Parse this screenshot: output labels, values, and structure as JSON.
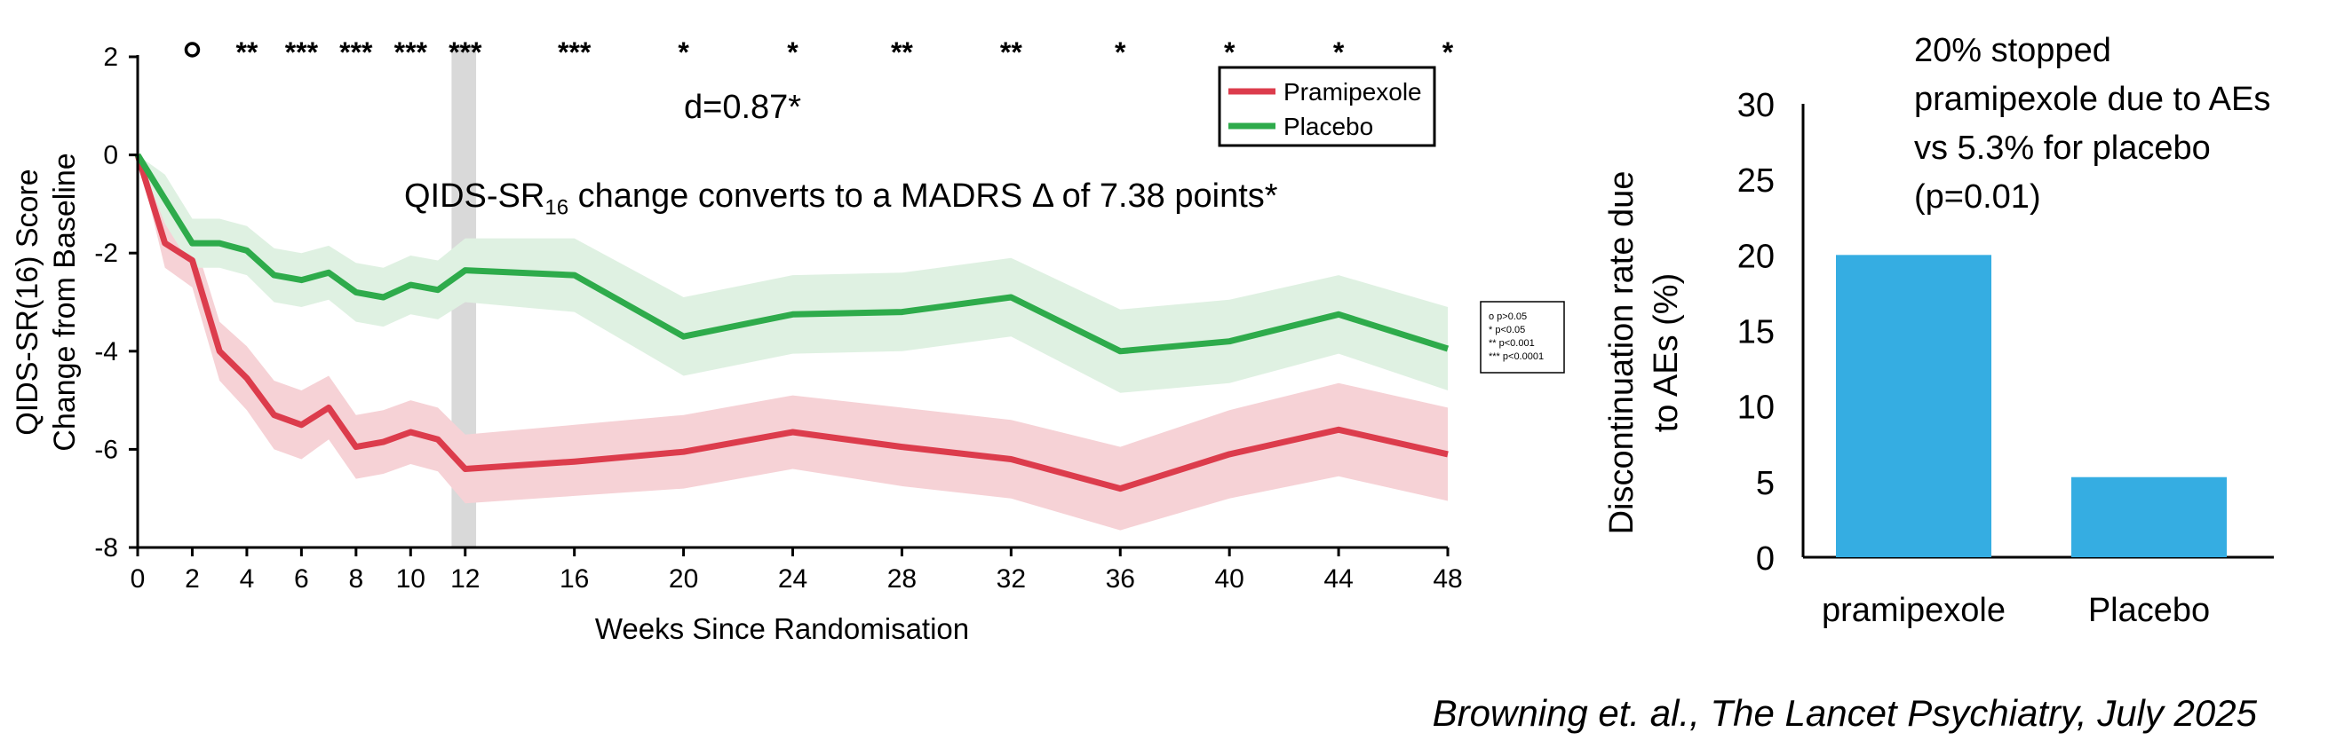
{
  "chart_data": [
    {
      "type": "line",
      "xlabel": "Weeks Since Randomisation",
      "ylabel_lines": [
        "QIDS-SR(16) Score",
        "Change from Baseline"
      ],
      "xlim": [
        0,
        48
      ],
      "ylim": [
        -8,
        2
      ],
      "xticks": [
        0,
        2,
        4,
        6,
        8,
        10,
        12,
        16,
        20,
        24,
        28,
        32,
        36,
        40,
        44,
        48
      ],
      "yticks": [
        2,
        0,
        -2,
        -4,
        -6,
        -8
      ],
      "highlight_band": {
        "from": 11.5,
        "to": 12.4
      },
      "series": [
        {
          "name": "Pramipexole",
          "color": "#dc3c4c",
          "band_color": "#f6d2d6",
          "x": [
            0,
            1,
            2,
            3,
            4,
            5,
            6,
            7,
            8,
            9,
            10,
            11,
            12,
            16,
            20,
            24,
            28,
            32,
            36,
            40,
            44,
            48
          ],
          "values": [
            0,
            -1.8,
            -2.15,
            -4.0,
            -4.55,
            -5.3,
            -5.5,
            -5.15,
            -5.95,
            -5.85,
            -5.65,
            -5.8,
            -6.4,
            -6.25,
            -6.05,
            -5.65,
            -5.95,
            -6.2,
            -6.8,
            -6.1,
            -5.6,
            -6.1
          ],
          "lower": [
            0,
            -2.3,
            -2.7,
            -4.6,
            -5.2,
            -6.0,
            -6.2,
            -5.8,
            -6.6,
            -6.5,
            -6.3,
            -6.45,
            -7.1,
            -6.95,
            -6.8,
            -6.4,
            -6.75,
            -7.0,
            -7.65,
            -7.0,
            -6.55,
            -7.05
          ],
          "upper": [
            0,
            -1.3,
            -1.6,
            -3.4,
            -3.9,
            -4.6,
            -4.8,
            -4.5,
            -5.3,
            -5.2,
            -5.0,
            -5.15,
            -5.7,
            -5.5,
            -5.3,
            -4.9,
            -5.15,
            -5.4,
            -5.95,
            -5.2,
            -4.65,
            -5.15
          ]
        },
        {
          "name": "Placebo",
          "color": "#2eab4b",
          "band_color": "#dff1e2",
          "x": [
            0,
            1,
            2,
            3,
            4,
            5,
            6,
            7,
            8,
            9,
            10,
            11,
            12,
            16,
            20,
            24,
            28,
            32,
            36,
            40,
            44,
            48
          ],
          "values": [
            0,
            -0.9,
            -1.8,
            -1.8,
            -1.95,
            -2.45,
            -2.55,
            -2.4,
            -2.8,
            -2.9,
            -2.65,
            -2.75,
            -2.35,
            -2.45,
            -3.7,
            -3.25,
            -3.2,
            -2.9,
            -4.0,
            -3.8,
            -3.25,
            -3.95
          ],
          "lower": [
            0,
            -1.4,
            -2.3,
            -2.3,
            -2.45,
            -3.0,
            -3.1,
            -2.95,
            -3.4,
            -3.5,
            -3.25,
            -3.35,
            -3.0,
            -3.2,
            -4.5,
            -4.05,
            -4.0,
            -3.7,
            -4.85,
            -4.65,
            -4.05,
            -4.8
          ],
          "upper": [
            0,
            -0.4,
            -1.3,
            -1.3,
            -1.45,
            -1.9,
            -2.0,
            -1.85,
            -2.2,
            -2.3,
            -2.05,
            -2.15,
            -1.7,
            -1.7,
            -2.9,
            -2.45,
            -2.4,
            -2.1,
            -3.15,
            -2.95,
            -2.45,
            -3.1
          ]
        }
      ],
      "significance_marks": [
        {
          "x": 2,
          "mark": "o"
        },
        {
          "x": 4,
          "mark": "**"
        },
        {
          "x": 6,
          "mark": "***"
        },
        {
          "x": 8,
          "mark": "***"
        },
        {
          "x": 10,
          "mark": "***"
        },
        {
          "x": 12,
          "mark": "***"
        },
        {
          "x": 16,
          "mark": "***"
        },
        {
          "x": 20,
          "mark": "*"
        },
        {
          "x": 24,
          "mark": "*"
        },
        {
          "x": 28,
          "mark": "**"
        },
        {
          "x": 32,
          "mark": "**"
        },
        {
          "x": 36,
          "mark": "*"
        },
        {
          "x": 40,
          "mark": "*"
        },
        {
          "x": 44,
          "mark": "*"
        },
        {
          "x": 48,
          "mark": "*"
        }
      ],
      "legend_position": "top-right",
      "significance_legend": [
        "o  p>0.05",
        "*  p<0.05",
        "**  p<0.001",
        "***  p<0.0001"
      ],
      "annotations": {
        "effect_size": "d=0.87*",
        "qids_prefix": "QIDS-SR",
        "qids_sub": "16",
        "qids_rest": " change converts to a MADRS Δ of 7.38 points*"
      }
    },
    {
      "type": "bar",
      "categories": [
        "pramipexole",
        "Placebo"
      ],
      "values": [
        20,
        5.3
      ],
      "bar_color": "#35ade2",
      "ylabel_lines": [
        "Discontinuation rate due",
        "to AEs (%)"
      ],
      "ylim": [
        0,
        30
      ],
      "yticks": [
        0,
        5,
        10,
        15,
        20,
        25,
        30
      ],
      "annotation": "20% stopped pramipexole due to AEs vs 5.3% for placebo (p=0.01)"
    }
  ],
  "citation": "Browning et. al., The Lancet Psychiatry, July 2025"
}
